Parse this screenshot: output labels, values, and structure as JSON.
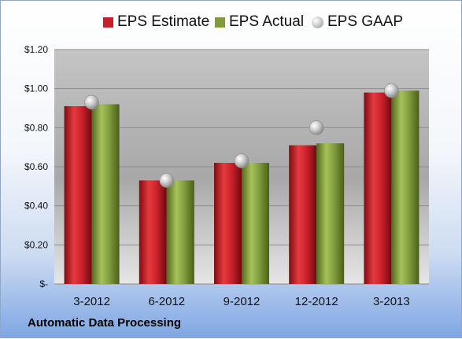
{
  "chart_data": {
    "type": "bar",
    "categories": [
      "3-2012",
      "6-2012",
      "9-2012",
      "12-2012",
      "3-2013"
    ],
    "series": [
      {
        "name": "EPS Estimate",
        "kind": "bar",
        "color": "#c8202a",
        "values": [
          0.91,
          0.53,
          0.62,
          0.71,
          0.98
        ]
      },
      {
        "name": "EPS Actual",
        "kind": "bar",
        "color": "#7f9b3c",
        "values": [
          0.92,
          0.53,
          0.62,
          0.72,
          0.99
        ]
      },
      {
        "name": "EPS GAAP",
        "kind": "marker",
        "color": "#b8b8b8",
        "values": [
          0.93,
          0.53,
          0.63,
          0.8,
          0.99
        ]
      }
    ],
    "ylim": [
      0,
      1.2
    ],
    "yticks": [
      0,
      0.2,
      0.4,
      0.6,
      0.8,
      1.0,
      1.2
    ],
    "ytick_labels": [
      "$-",
      "$0.20",
      "$0.40",
      "$0.60",
      "$0.80",
      "$1.00",
      "$1.20"
    ],
    "grid": true,
    "legend_position": "top"
  },
  "footer": {
    "company": "Automatic Data Processing"
  }
}
